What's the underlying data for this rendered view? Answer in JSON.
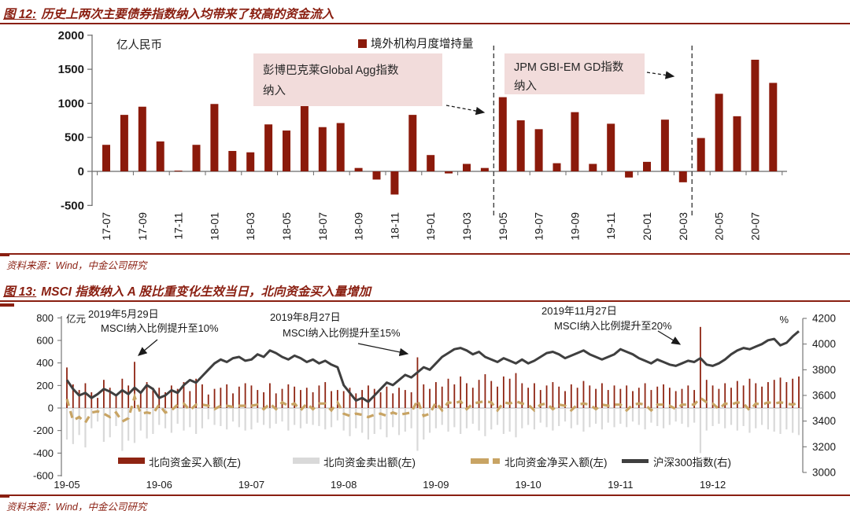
{
  "chart_data": [
    {
      "id": "fig12",
      "type": "bar",
      "title_prefix": "图 12:",
      "title_text": "历史上两次主要债券指数纳入均带来了较高的资金流入",
      "unit_label": "亿人民币",
      "legend": [
        {
          "label": "境外机构月度增持量",
          "color": "#8b1a0b"
        }
      ],
      "bar_color": "#8b1a0b",
      "ylim": [
        -500,
        2000
      ],
      "yticks": [
        2000,
        1500,
        1000,
        500,
        0,
        -500
      ],
      "xtick_every": 2,
      "categories": [
        "17-07",
        "17-08",
        "17-09",
        "17-10",
        "17-11",
        "17-12",
        "18-01",
        "18-02",
        "18-03",
        "18-04",
        "18-05",
        "18-06",
        "18-07",
        "18-08",
        "18-09",
        "18-10",
        "18-11",
        "18-12",
        "19-01",
        "19-02",
        "19-03",
        "19-04",
        "19-05",
        "19-06",
        "19-07",
        "19-08",
        "19-09",
        "19-10",
        "19-11",
        "19-12",
        "20-01",
        "20-02",
        "20-03",
        "20-04",
        "20-05",
        "20-06",
        "20-07",
        "20-08"
      ],
      "values": [
        390,
        830,
        950,
        440,
        10,
        390,
        990,
        300,
        280,
        690,
        600,
        980,
        650,
        710,
        50,
        -120,
        -340,
        830,
        240,
        -30,
        110,
        50,
        1090,
        750,
        620,
        120,
        870,
        110,
        700,
        -90,
        140,
        760,
        -160,
        490,
        1140,
        810,
        1640,
        1300
      ],
      "dashed_vlines_between": [
        [
          "19-04",
          "19-05"
        ],
        [
          "20-03",
          "20-04"
        ]
      ],
      "annotations": [
        {
          "lines": [
            "彭博巴克莱Global Agg指数",
            "纳入"
          ],
          "box_color": "#f2dcdb"
        },
        {
          "lines": [
            "JPM GBI-EM GD指数",
            "纳入"
          ],
          "box_color": "#f2dcdb"
        }
      ],
      "source": "资料来源：Wind，中金公司研究"
    },
    {
      "id": "fig13",
      "type": "combo",
      "title_prefix": "图 13:",
      "title_text": "MSCI 指数纳入 A 股比重变化生效当日，北向资金买入量增加",
      "unit_label_left": "亿元",
      "unit_label_right": "%",
      "ylim_left": [
        -600,
        800
      ],
      "ylim_right": [
        3000,
        4200
      ],
      "yticks_left": [
        800,
        600,
        400,
        200,
        0,
        -200,
        -400,
        -600
      ],
      "yticks_right": [
        4200,
        4000,
        3800,
        3600,
        3400,
        3200,
        3000
      ],
      "x_axis_labels": [
        "19-05",
        "19-06",
        "19-07",
        "19-08",
        "19-09",
        "19-10",
        "19-11",
        "19-12"
      ],
      "month_start_index": [
        0,
        15,
        30,
        45,
        60,
        75,
        90,
        105
      ],
      "n_points": 120,
      "series": [
        {
          "name": "北向资金买入额(左)",
          "type": "bar",
          "axis": "left",
          "color": "#8e2412",
          "values": [
            360,
            210,
            160,
            220,
            140,
            90,
            250,
            180,
            120,
            260,
            200,
            410,
            150,
            230,
            180,
            180,
            140,
            200,
            170,
            230,
            150,
            260,
            210,
            120,
            170,
            180,
            210,
            130,
            190,
            220,
            200,
            160,
            140,
            220,
            130,
            170,
            210,
            190,
            160,
            180,
            140,
            200,
            230,
            150,
            160,
            150,
            180,
            130,
            160,
            200,
            170,
            140,
            190,
            130,
            180,
            160,
            140,
            450,
            210,
            170,
            230,
            190,
            260,
            210,
            280,
            220,
            180,
            250,
            300,
            240,
            190,
            280,
            260,
            310,
            220,
            180,
            220,
            160,
            200,
            230,
            190,
            150,
            210,
            180,
            240,
            200,
            170,
            220,
            160,
            200,
            170,
            200,
            150,
            180,
            220,
            160,
            190,
            210,
            180,
            150,
            170,
            200,
            160,
            720,
            250,
            200,
            170,
            220,
            180,
            240,
            200,
            260,
            220,
            190,
            230,
            250,
            270,
            230,
            260,
            280
          ]
        },
        {
          "name": "北向资金卖出额(左)",
          "type": "bar",
          "axis": "left",
          "color": "#d9d9d9",
          "values": [
            -280,
            -320,
            -240,
            -350,
            -180,
            -120,
            -300,
            -260,
            -160,
            -380,
            -290,
            -310,
            -200,
            -270,
            -230,
            -150,
            -180,
            -220,
            -140,
            -200,
            -170,
            -230,
            -180,
            -100,
            -150,
            -160,
            -190,
            -120,
            -170,
            -200,
            -190,
            -130,
            -150,
            -180,
            -140,
            -120,
            -200,
            -150,
            -180,
            -140,
            -150,
            -160,
            -190,
            -170,
            -110,
            -200,
            -250,
            -180,
            -220,
            -280,
            -230,
            -190,
            -260,
            -170,
            -240,
            -210,
            -180,
            -380,
            -280,
            -220,
            -180,
            -150,
            -210,
            -170,
            -230,
            -180,
            -140,
            -200,
            -250,
            -190,
            -150,
            -230,
            -210,
            -260,
            -180,
            -150,
            -190,
            -130,
            -170,
            -200,
            -160,
            -120,
            -180,
            -150,
            -210,
            -170,
            -140,
            -190,
            -130,
            -170,
            -140,
            -170,
            -120,
            -150,
            -190,
            -130,
            -160,
            -180,
            -150,
            -120,
            -140,
            -170,
            -130,
            -400,
            -200,
            -160,
            -140,
            -180,
            -150,
            -200,
            -160,
            -220,
            -180,
            -150,
            -190,
            -210,
            -230,
            -190,
            -220,
            -240
          ]
        },
        {
          "name": "北向资金净买入额(左)",
          "type": "line",
          "style": "dashed",
          "axis": "left",
          "color": "#c8a464",
          "values": [
            80,
            -110,
            -80,
            -130,
            -40,
            -30,
            -50,
            -80,
            -40,
            -120,
            -90,
            100,
            -50,
            -40,
            -50,
            30,
            -40,
            -20,
            30,
            40,
            -20,
            30,
            30,
            20,
            -10,
            20,
            20,
            10,
            20,
            20,
            20,
            30,
            -10,
            40,
            -10,
            50,
            20,
            40,
            -20,
            40,
            -10,
            40,
            40,
            -20,
            50,
            -50,
            -70,
            -50,
            -60,
            -80,
            -60,
            -50,
            -70,
            -40,
            -60,
            -50,
            -40,
            70,
            -70,
            -50,
            50,
            -20,
            50,
            40,
            60,
            -10,
            40,
            50,
            60,
            50,
            -20,
            50,
            40,
            60,
            40,
            30,
            -20,
            30,
            40,
            -10,
            30,
            20,
            -20,
            30,
            40,
            30,
            -10,
            30,
            20,
            30,
            30,
            -20,
            30,
            40,
            30,
            -20,
            30,
            30,
            20,
            -10,
            30,
            30,
            30,
            90,
            50,
            40,
            -10,
            40,
            30,
            50,
            40,
            -20,
            40,
            30,
            50,
            40,
            50,
            40,
            30,
            50
          ]
        },
        {
          "name": "沪深300指数(右)",
          "type": "line",
          "axis": "right",
          "color": "#3f3f3f",
          "values": [
            3720,
            3650,
            3600,
            3620,
            3580,
            3610,
            3650,
            3630,
            3600,
            3640,
            3610,
            3660,
            3620,
            3680,
            3650,
            3580,
            3600,
            3640,
            3620,
            3680,
            3720,
            3700,
            3750,
            3800,
            3850,
            3880,
            3860,
            3890,
            3900,
            3870,
            3880,
            3920,
            3900,
            3950,
            3930,
            3900,
            3880,
            3910,
            3890,
            3860,
            3880,
            3850,
            3870,
            3840,
            3820,
            3680,
            3620,
            3560,
            3580,
            3550,
            3600,
            3650,
            3700,
            3680,
            3720,
            3760,
            3740,
            3780,
            3820,
            3800,
            3850,
            3900,
            3930,
            3960,
            3970,
            3950,
            3920,
            3940,
            3900,
            3880,
            3860,
            3890,
            3870,
            3850,
            3880,
            3850,
            3870,
            3900,
            3930,
            3940,
            3920,
            3890,
            3910,
            3930,
            3950,
            3920,
            3900,
            3880,
            3900,
            3920,
            3960,
            3940,
            3920,
            3890,
            3870,
            3850,
            3880,
            3860,
            3840,
            3830,
            3850,
            3870,
            3860,
            3890,
            3840,
            3830,
            3850,
            3880,
            3920,
            3950,
            3970,
            3960,
            3980,
            4000,
            4030,
            4040,
            3990,
            4010,
            4060,
            4100
          ]
        }
      ],
      "annotations": [
        {
          "lines": [
            "2019年5月29日",
            "MSCI纳入比例提升至10%"
          ],
          "point_index": 11
        },
        {
          "lines": [
            "2019年8月27日",
            "MSCI纳入比例提升至15%"
          ],
          "point_index": 57
        },
        {
          "lines": [
            "2019年11月27日",
            "MSCI纳入比例提升至20%"
          ],
          "point_index": 103
        }
      ],
      "source": "资料来源：Wind，中金公司研究"
    }
  ],
  "theme": {
    "maroon": "#8a1f11",
    "annotation_box": "#f2dcdb",
    "axis_gray": "#6a6a6a",
    "text_dark": "#1a1a1a"
  }
}
